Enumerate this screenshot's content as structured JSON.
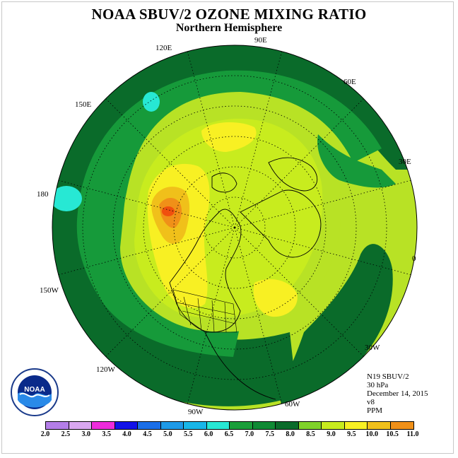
{
  "title": "NOAA SBUV/2 OZONE MIXING RATIO",
  "subtitle": "Northern Hemisphere",
  "longitude_labels": [
    "90E",
    "60E",
    "30E",
    "0",
    "30W",
    "60W",
    "90W",
    "120W",
    "150W",
    "180",
    "150E",
    "120E"
  ],
  "info": {
    "satellite": "N19 SBUV/2",
    "level": "30 hPa",
    "date": "December 14, 2015",
    "version": "v8",
    "units": "PPM"
  },
  "colorbar": {
    "ticks": [
      "2.0",
      "2.5",
      "3.0",
      "3.5",
      "4.0",
      "4.5",
      "5.0",
      "5.5",
      "6.0",
      "6.5",
      "7.0",
      "7.5",
      "8.0",
      "8.5",
      "9.0",
      "9.5",
      "10.0",
      "10.5",
      "11.0"
    ],
    "colors": [
      "#b47ee8",
      "#d9a7f0",
      "#ee2bdc",
      "#1212e8",
      "#1a6ee8",
      "#1e9ae8",
      "#18b6e8",
      "#27e8d4",
      "#1a9e3a",
      "#0f8a34",
      "#0a6b2a",
      "#7fd22a",
      "#c8ec1e",
      "#f8f023",
      "#f0c01a",
      "#f09018",
      "#f0500e",
      "#e01010",
      "#7a4a2a"
    ]
  },
  "logo": {
    "text": "NOAA"
  }
}
